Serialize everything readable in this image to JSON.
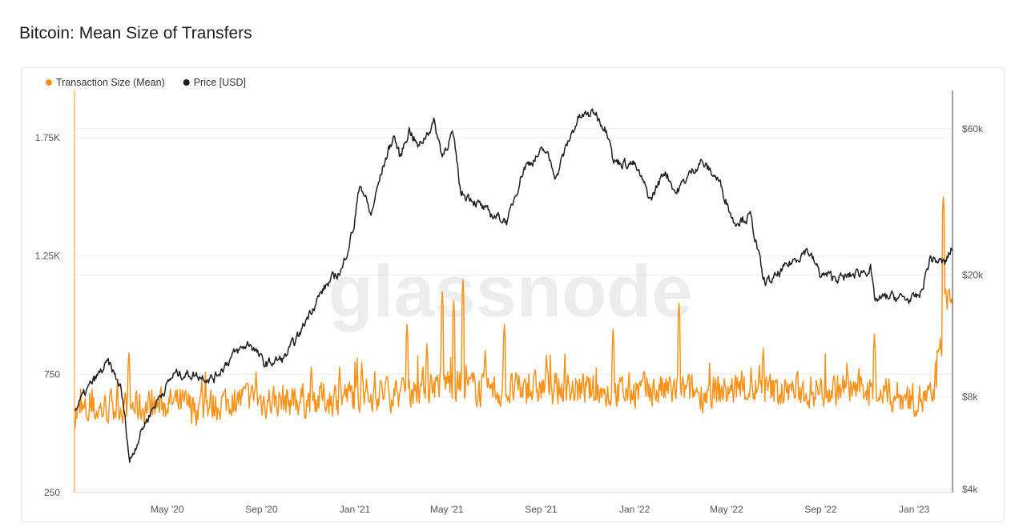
{
  "page": {
    "title": "Bitcoin: Mean Size of Transfers"
  },
  "watermark": "glassnode",
  "chart_data": {
    "type": "line",
    "title": "Bitcoin: Mean Size of Transfers",
    "legend": {
      "placement": "top-left"
    },
    "grid": {
      "horizontal": true,
      "vertical": false
    },
    "x_axis": {
      "range": [
        "2020-01-01",
        "2023-02-20"
      ],
      "ticks": [
        {
          "date": "2020-05-01",
          "label": "May '20"
        },
        {
          "date": "2020-09-01",
          "label": "Sep '20"
        },
        {
          "date": "2021-01-01",
          "label": "Jan '21"
        },
        {
          "date": "2021-05-01",
          "label": "May '21"
        },
        {
          "date": "2021-09-01",
          "label": "Sep '21"
        },
        {
          "date": "2022-01-01",
          "label": "Jan '22"
        },
        {
          "date": "2022-05-01",
          "label": "May '22"
        },
        {
          "date": "2022-09-01",
          "label": "Sep '22"
        },
        {
          "date": "2023-01-01",
          "label": "Jan '23"
        }
      ]
    },
    "y_left": {
      "range": [
        250,
        1950
      ],
      "ticks": [
        {
          "value": 250,
          "label": "250"
        },
        {
          "value": 750,
          "label": "750"
        },
        {
          "value": 1250,
          "label": "1.25K"
        },
        {
          "value": 1750,
          "label": "1.75K"
        }
      ]
    },
    "y_right": {
      "scale": "log",
      "range": [
        3900,
        80000
      ],
      "ticks": [
        {
          "value": 4000,
          "label": "$4k"
        },
        {
          "value": 8000,
          "label": "$8k"
        },
        {
          "value": 20000,
          "label": "$20k"
        },
        {
          "value": 60000,
          "label": "$60k"
        }
      ]
    },
    "series": [
      {
        "name": "Transaction Size (Mean)",
        "color": "#f7931a",
        "axis": "left",
        "base_points": [
          [
            "2020-01-01",
            580
          ],
          [
            "2020-02-01",
            600
          ],
          [
            "2020-03-01",
            620
          ],
          [
            "2020-04-01",
            610
          ],
          [
            "2020-05-01",
            630
          ],
          [
            "2020-06-01",
            610
          ],
          [
            "2020-07-01",
            620
          ],
          [
            "2020-08-01",
            650
          ],
          [
            "2020-09-01",
            640
          ],
          [
            "2020-10-01",
            640
          ],
          [
            "2020-11-01",
            645
          ],
          [
            "2020-12-01",
            650
          ],
          [
            "2021-01-01",
            660
          ],
          [
            "2021-02-01",
            670
          ],
          [
            "2021-03-01",
            680
          ],
          [
            "2021-04-01",
            700
          ],
          [
            "2021-05-01",
            720
          ],
          [
            "2021-06-01",
            690
          ],
          [
            "2021-07-01",
            680
          ],
          [
            "2021-08-01",
            680
          ],
          [
            "2021-09-01",
            690
          ],
          [
            "2021-10-01",
            690
          ],
          [
            "2021-11-01",
            680
          ],
          [
            "2021-12-01",
            670
          ],
          [
            "2022-01-01",
            680
          ],
          [
            "2022-02-01",
            680
          ],
          [
            "2022-03-01",
            680
          ],
          [
            "2022-04-01",
            670
          ],
          [
            "2022-05-01",
            680
          ],
          [
            "2022-06-01",
            690
          ],
          [
            "2022-07-01",
            680
          ],
          [
            "2022-08-01",
            680
          ],
          [
            "2022-09-01",
            680
          ],
          [
            "2022-10-01",
            690
          ],
          [
            "2022-11-01",
            690
          ],
          [
            "2022-12-01",
            660
          ],
          [
            "2023-01-01",
            650
          ],
          [
            "2023-01-25",
            640
          ],
          [
            "2023-02-05",
            850
          ],
          [
            "2023-02-12",
            1100
          ],
          [
            "2023-02-20",
            1050
          ]
        ],
        "spikes": [
          [
            "2020-03-12",
            840
          ],
          [
            "2020-06-15",
            730
          ],
          [
            "2020-08-25",
            760
          ],
          [
            "2020-11-05",
            780
          ],
          [
            "2020-12-12",
            780
          ],
          [
            "2021-01-10",
            800
          ],
          [
            "2021-03-10",
            960
          ],
          [
            "2021-04-05",
            880
          ],
          [
            "2021-04-25",
            1100
          ],
          [
            "2021-05-10",
            1060
          ],
          [
            "2021-05-22",
            1150
          ],
          [
            "2021-06-20",
            850
          ],
          [
            "2021-07-15",
            960
          ],
          [
            "2021-09-08",
            830
          ],
          [
            "2021-12-04",
            940
          ],
          [
            "2022-02-28",
            1050
          ],
          [
            "2022-06-18",
            860
          ],
          [
            "2022-11-10",
            920
          ],
          [
            "2023-02-08",
            1500
          ]
        ]
      },
      {
        "name": "Price [USD]",
        "color": "#1f1f1f",
        "axis": "right",
        "points": [
          [
            "2020-01-01",
            7200
          ],
          [
            "2020-01-20",
            8600
          ],
          [
            "2020-02-14",
            10300
          ],
          [
            "2020-03-01",
            8600
          ],
          [
            "2020-03-13",
            4900
          ],
          [
            "2020-04-01",
            6500
          ],
          [
            "2020-04-30",
            8700
          ],
          [
            "2020-05-10",
            9500
          ],
          [
            "2020-06-01",
            9500
          ],
          [
            "2020-07-01",
            9200
          ],
          [
            "2020-07-27",
            11000
          ],
          [
            "2020-08-17",
            12000
          ],
          [
            "2020-09-05",
            10200
          ],
          [
            "2020-10-01",
            10700
          ],
          [
            "2020-10-21",
            12800
          ],
          [
            "2020-11-05",
            15500
          ],
          [
            "2020-11-25",
            18500
          ],
          [
            "2020-12-16",
            21000
          ],
          [
            "2020-12-31",
            29000
          ],
          [
            "2021-01-08",
            40000
          ],
          [
            "2021-01-22",
            31000
          ],
          [
            "2021-02-08",
            46000
          ],
          [
            "2021-02-21",
            57000
          ],
          [
            "2021-03-01",
            48000
          ],
          [
            "2021-03-13",
            60000
          ],
          [
            "2021-03-25",
            52000
          ],
          [
            "2021-04-14",
            63000
          ],
          [
            "2021-04-25",
            49000
          ],
          [
            "2021-05-08",
            58000
          ],
          [
            "2021-05-19",
            37000
          ],
          [
            "2021-06-01",
            36000
          ],
          [
            "2021-06-22",
            32000
          ],
          [
            "2021-07-20",
            30000
          ],
          [
            "2021-08-10",
            45000
          ],
          [
            "2021-09-06",
            51000
          ],
          [
            "2021-09-21",
            42000
          ],
          [
            "2021-10-20",
            65000
          ],
          [
            "2021-11-10",
            68000
          ],
          [
            "2021-11-30",
            57000
          ],
          [
            "2021-12-04",
            47000
          ],
          [
            "2021-12-31",
            46000
          ],
          [
            "2022-01-22",
            35000
          ],
          [
            "2022-02-10",
            44000
          ],
          [
            "2022-02-24",
            37000
          ],
          [
            "2022-03-28",
            47000
          ],
          [
            "2022-04-20",
            41000
          ],
          [
            "2022-05-10",
            30000
          ],
          [
            "2022-06-01",
            31000
          ],
          [
            "2022-06-18",
            19000
          ],
          [
            "2022-07-01",
            19300
          ],
          [
            "2022-08-14",
            24300
          ],
          [
            "2022-09-01",
            20000
          ],
          [
            "2022-10-01",
            19500
          ],
          [
            "2022-11-05",
            21000
          ],
          [
            "2022-11-10",
            16500
          ],
          [
            "2022-12-01",
            17000
          ],
          [
            "2022-12-31",
            16600
          ],
          [
            "2023-01-10",
            17400
          ],
          [
            "2023-01-22",
            22700
          ],
          [
            "2023-02-10",
            21800
          ],
          [
            "2023-02-20",
            24500
          ]
        ]
      }
    ]
  }
}
